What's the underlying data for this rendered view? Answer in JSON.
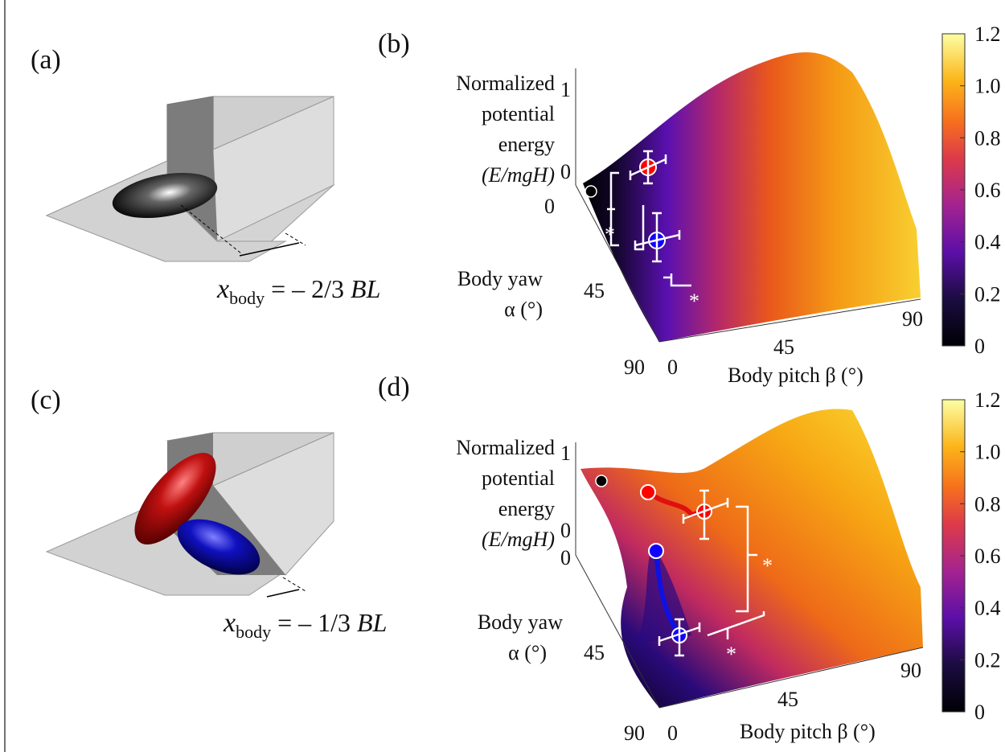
{
  "panels": [
    {
      "label": "(a)",
      "formula": {
        "symbol": "x",
        "subscript": "body",
        "relation": "= – 2/3",
        "unit": "BL"
      }
    },
    {
      "label": "(b)",
      "energy_label": [
        "Normalized",
        "potential",
        "energy",
        "(E/mgH)"
      ],
      "energy_ticks": [
        "1",
        "0"
      ],
      "yaw_label": [
        "Body yaw",
        "α (°)"
      ],
      "yaw_ticks": [
        "0",
        "45",
        "90"
      ],
      "pitch_label": "Body pitch β (°)",
      "pitch_ticks": [
        "0",
        "45",
        "90"
      ],
      "significance": [
        "*",
        "*"
      ],
      "colorbar_ticks": [
        "0",
        "0.2",
        "0.4",
        "0.6",
        "0.8",
        "1.0",
        "1.2"
      ]
    },
    {
      "label": "(c)",
      "formula": {
        "symbol": "x",
        "subscript": "body",
        "relation": "= – 1/3",
        "unit": "BL"
      }
    },
    {
      "label": "(d)",
      "energy_label": [
        "Normalized",
        "potential",
        "energy",
        "(E/mgH)"
      ],
      "energy_ticks": [
        "1",
        "0"
      ],
      "yaw_label": [
        "Body yaw",
        "α (°)"
      ],
      "yaw_ticks": [
        "0",
        "45",
        "90"
      ],
      "pitch_label": "Body pitch β (°)",
      "pitch_ticks": [
        "0",
        "45",
        "90"
      ],
      "significance": [
        "*",
        "*"
      ],
      "colorbar_ticks": [
        "0",
        "0.2",
        "0.4",
        "0.6",
        "0.8",
        "1.0",
        "1.2"
      ]
    }
  ]
}
